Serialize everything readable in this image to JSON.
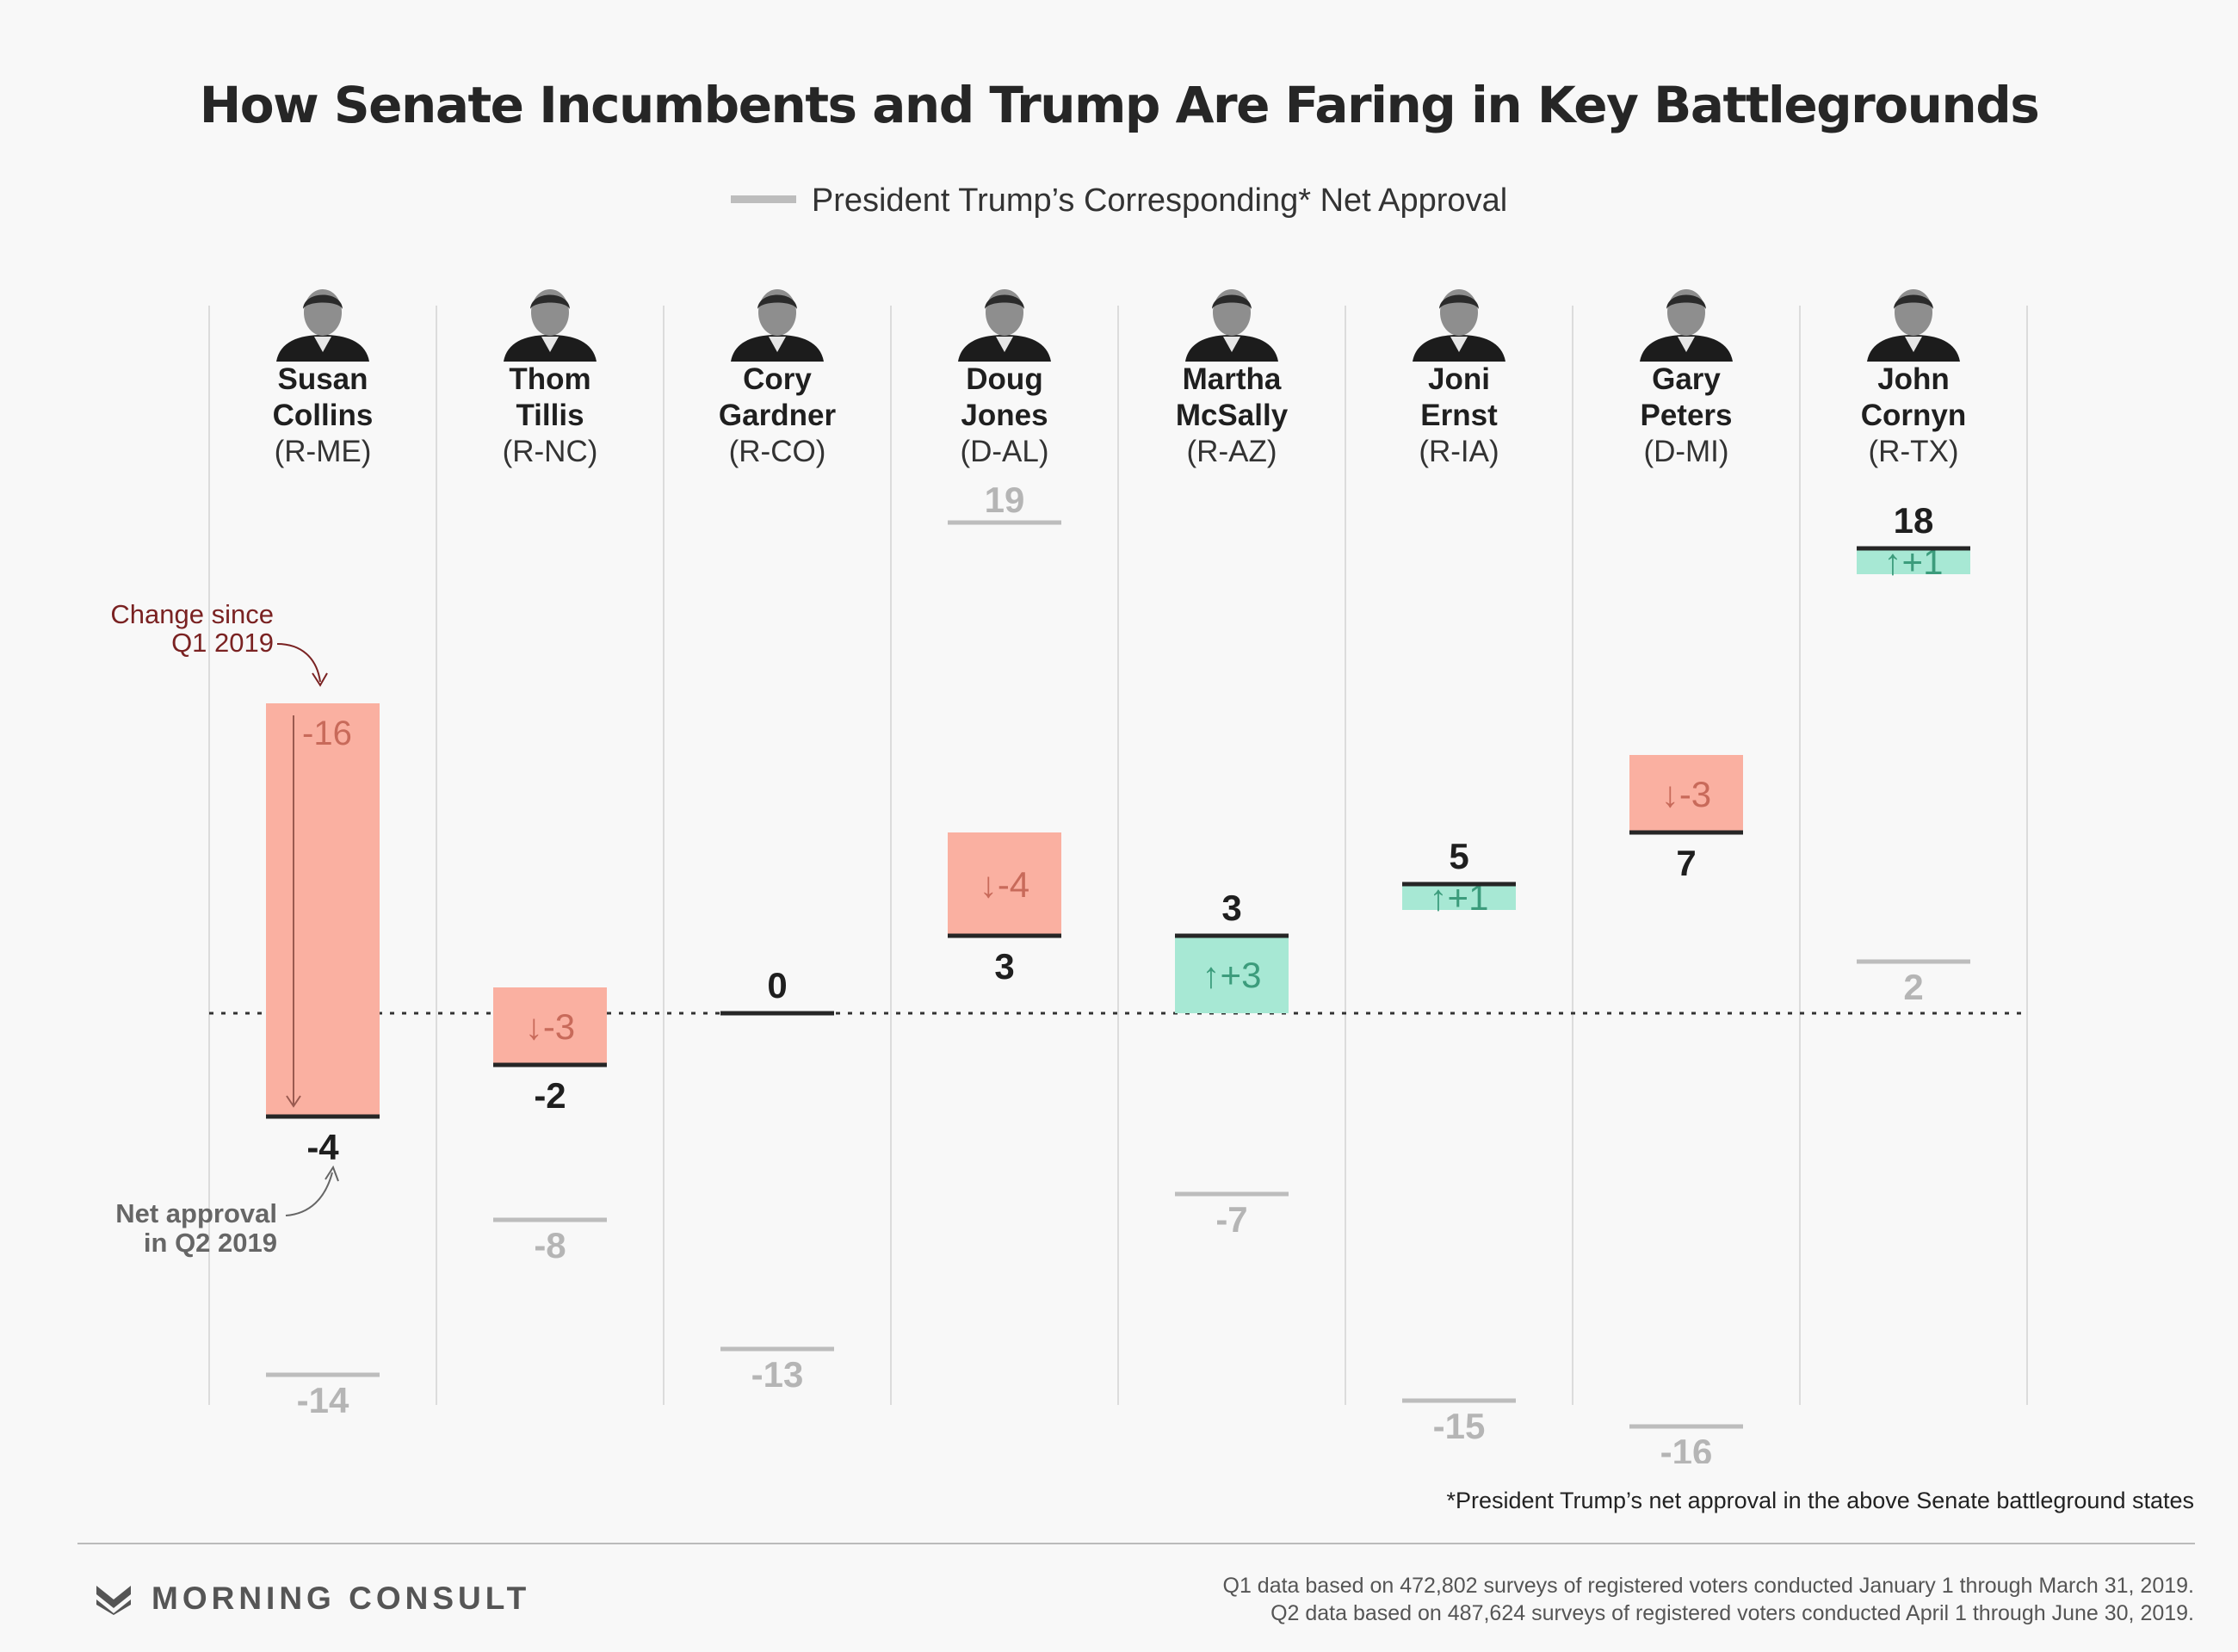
{
  "title": "How Senate Incumbents and Trump Are Faring in Key Battlegrounds",
  "legend_label": "President Trump’s Corresponding* Net Approval",
  "footnote": "*President Trump’s net approval in the above Senate battleground states",
  "source_q1": "Q1 data based on 472,802 surveys of registered voters conducted January 1 through March 31, 2019.",
  "source_q2": "Q2 data based on 487,624 surveys of registered voters conducted April 1 through June 30, 2019.",
  "brand": "MORNING CONSULT",
  "annotations": {
    "change_line1": "Change since",
    "change_line2": "Q1 2019",
    "net_line1": "Net approval",
    "net_line2": "in Q2 2019"
  },
  "colors": {
    "decline": "#fab0a1",
    "decline_text": "#c86a5a",
    "gain": "#a7e8d4",
    "gain_text": "#3c9c7c",
    "trump": "#bdbdbd",
    "annotation": "#7a2222"
  },
  "chart_data": {
    "type": "bar",
    "title": "How Senate Incumbents and Trump Are Faring in Key Battlegrounds",
    "ylim": [
      -16,
      19
    ],
    "zero_line": "dotted",
    "senators": [
      {
        "first": "Susan",
        "last": "Collins",
        "party": "(R-ME)",
        "q2_net": -4,
        "change": -16,
        "change_label": "-16",
        "trump_net": -14
      },
      {
        "first": "Thom",
        "last": "Tillis",
        "party": "(R-NC)",
        "q2_net": -2,
        "change": -3,
        "change_label": "↓-3",
        "trump_net": -8
      },
      {
        "first": "Cory",
        "last": "Gardner",
        "party": "(R-CO)",
        "q2_net": 0,
        "change": 0,
        "change_label": "",
        "trump_net": -13
      },
      {
        "first": "Doug",
        "last": "Jones",
        "party": "(D-AL)",
        "q2_net": 3,
        "change": -4,
        "change_label": "↓-4",
        "trump_net": 19
      },
      {
        "first": "Martha",
        "last": "McSally",
        "party": "(R-AZ)",
        "q2_net": 3,
        "change": 3,
        "change_label": "↑+3",
        "trump_net": -7
      },
      {
        "first": "Joni",
        "last": "Ernst",
        "party": "(R-IA)",
        "q2_net": 5,
        "change": 1,
        "change_label": "↑+1",
        "trump_net": -15
      },
      {
        "first": "Gary",
        "last": "Peters",
        "party": "(D-MI)",
        "q2_net": 7,
        "change": -3,
        "change_label": "↓-3",
        "trump_net": -16
      },
      {
        "first": "John",
        "last": "Cornyn",
        "party": "(R-TX)",
        "q2_net": 18,
        "change": 1,
        "change_label": "↑+1",
        "trump_net": 2
      }
    ]
  }
}
